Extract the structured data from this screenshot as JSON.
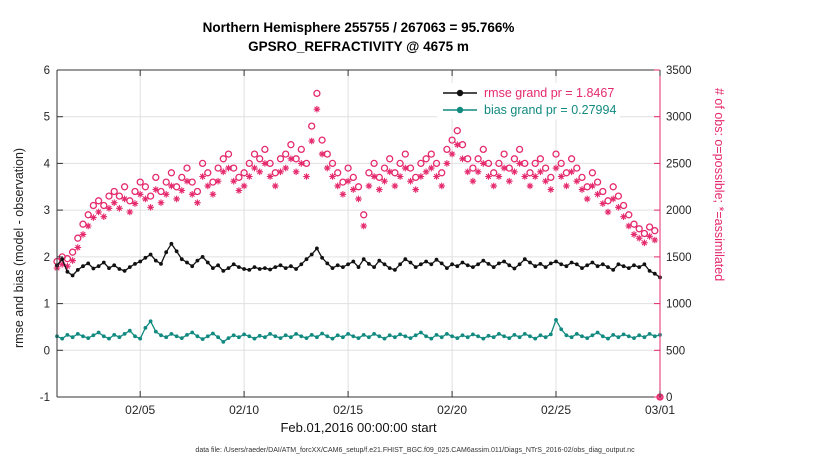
{
  "page": {
    "title_line1": "Northern Hemisphere 255755 / 267063 = 95.766%",
    "title_line2": "GPSRO_REFRACTIVITY @ 4675 m",
    "footer": "data file: /Users/raeder/DAI/ATM_forcXX/CAM6_setup/f.e21.FHIST_BGC.f09_025.CAM6assim.011/Diags_NTrS_2016-02/obs_diag_output.nc"
  },
  "chart_data": {
    "type": "line",
    "title": "Northern Hemisphere 255755 / 267063 = 95.766%",
    "subtitle": "GPSRO_REFRACTIVITY @ 4675 m",
    "colors": {
      "obs_pink": "#e5296d",
      "bias_teal": "#128a80",
      "rmse_black": "#111111",
      "grid": "#e0e0e0",
      "axis": "#333333"
    },
    "x_axis": {
      "label": "Feb.01,2016 00:00:00 start",
      "start_day": 1,
      "end_day": 30,
      "step_days": 0.25,
      "ticks": [
        {
          "day": 5,
          "label": "02/05"
        },
        {
          "day": 10,
          "label": "02/10"
        },
        {
          "day": 15,
          "label": "02/15"
        },
        {
          "day": 20,
          "label": "02/20"
        },
        {
          "day": 25,
          "label": "02/25"
        },
        {
          "day": 30,
          "label": "03/01"
        }
      ]
    },
    "y_left": {
      "label": "rmse and bias (model - observation)",
      "min": -1,
      "max": 6,
      "ticks": [
        -1,
        0,
        1,
        2,
        3,
        4,
        5,
        6
      ]
    },
    "y_right": {
      "label": "# of obs: o=possible; *=assimilated",
      "min": 0,
      "max": 3500,
      "ticks": [
        0,
        500,
        1000,
        1500,
        2000,
        2500,
        3000,
        3500
      ]
    },
    "legend": [
      {
        "label": "rmse grand pr = 1.8467",
        "line_color": "#111111",
        "text_color": "#e5296d"
      },
      {
        "label": "bias grand pr = 0.27994",
        "line_color": "#128a80",
        "text_color": "#128a80"
      }
    ],
    "series": {
      "rmse": {
        "name": "rmse",
        "axis": "left",
        "marker": "dot",
        "values": [
          1.82,
          1.95,
          1.68,
          1.6,
          1.72,
          1.8,
          1.86,
          1.75,
          1.8,
          1.88,
          1.76,
          1.82,
          1.74,
          1.7,
          1.78,
          1.85,
          1.9,
          1.98,
          2.05,
          1.92,
          1.85,
          2.1,
          2.28,
          2.12,
          1.95,
          1.88,
          1.8,
          1.92,
          2.0,
          1.88,
          1.76,
          1.82,
          1.7,
          1.76,
          1.84,
          1.78,
          1.74,
          1.72,
          1.78,
          1.74,
          1.76,
          1.73,
          1.78,
          1.82,
          1.76,
          1.8,
          1.74,
          1.84,
          1.95,
          2.05,
          2.18,
          1.98,
          1.86,
          1.76,
          1.82,
          1.78,
          1.84,
          1.9,
          1.78,
          1.95,
          1.85,
          1.78,
          1.92,
          1.84,
          1.76,
          1.72,
          1.84,
          1.95,
          1.88,
          1.78,
          1.84,
          1.9,
          1.84,
          1.94,
          1.86,
          1.76,
          1.84,
          1.8,
          1.88,
          1.82,
          1.78,
          1.84,
          1.92,
          1.85,
          1.78,
          1.86,
          1.9,
          1.82,
          1.75,
          1.84,
          1.95,
          1.88,
          1.8,
          1.85,
          1.78,
          1.86,
          1.9,
          1.84,
          1.8,
          1.88,
          1.84,
          1.76,
          1.82,
          1.88,
          1.8,
          1.84,
          1.78,
          1.72,
          1.84,
          1.8,
          1.76,
          1.82,
          1.78,
          1.84,
          1.7,
          1.64,
          1.56
        ]
      },
      "bias": {
        "name": "bias",
        "axis": "left",
        "marker": "dot",
        "values": [
          0.3,
          0.25,
          0.33,
          0.28,
          0.35,
          0.3,
          0.26,
          0.32,
          0.38,
          0.3,
          0.25,
          0.33,
          0.28,
          0.35,
          0.42,
          0.3,
          0.25,
          0.48,
          0.62,
          0.4,
          0.32,
          0.28,
          0.35,
          0.3,
          0.26,
          0.33,
          0.38,
          0.3,
          0.24,
          0.3,
          0.36,
          0.28,
          0.18,
          0.26,
          0.32,
          0.28,
          0.34,
          0.3,
          0.25,
          0.31,
          0.28,
          0.35,
          0.3,
          0.26,
          0.32,
          0.28,
          0.35,
          0.3,
          0.26,
          0.33,
          0.28,
          0.36,
          0.3,
          0.25,
          0.32,
          0.28,
          0.35,
          0.3,
          0.26,
          0.33,
          0.28,
          0.35,
          0.3,
          0.25,
          0.32,
          0.28,
          0.34,
          0.3,
          0.26,
          0.32,
          0.38,
          0.3,
          0.25,
          0.33,
          0.28,
          0.35,
          0.3,
          0.26,
          0.32,
          0.28,
          0.34,
          0.3,
          0.25,
          0.31,
          0.28,
          0.35,
          0.3,
          0.26,
          0.33,
          0.28,
          0.35,
          0.3,
          0.25,
          0.32,
          0.28,
          0.34,
          0.65,
          0.45,
          0.32,
          0.28,
          0.35,
          0.3,
          0.26,
          0.32,
          0.38,
          0.3,
          0.25,
          0.33,
          0.28,
          0.34,
          0.3,
          0.26,
          0.32,
          0.28,
          0.35,
          0.3,
          0.33
        ]
      },
      "possible": {
        "name": "# possible",
        "axis": "right",
        "marker": "circle",
        "values": [
          1450,
          1500,
          1480,
          1550,
          1700,
          1850,
          1950,
          2050,
          2100,
          2050,
          2150,
          2200,
          2150,
          2250,
          2100,
          2200,
          2300,
          2250,
          2150,
          2350,
          2200,
          2300,
          2400,
          2250,
          2350,
          2450,
          2300,
          2200,
          2500,
          2400,
          2300,
          2450,
          2550,
          2600,
          2450,
          2350,
          2400,
          2500,
          2600,
          2550,
          2650,
          2500,
          2400,
          2550,
          2600,
          2700,
          2550,
          2650,
          2500,
          2900,
          3250,
          2750,
          2600,
          2500,
          2400,
          2300,
          2450,
          2350,
          2250,
          1950,
          2400,
          2500,
          2350,
          2450,
          2550,
          2400,
          2500,
          2600,
          2450,
          2350,
          2500,
          2550,
          2600,
          2500,
          2400,
          2650,
          2750,
          2850,
          2700,
          2550,
          2450,
          2550,
          2650,
          2500,
          2400,
          2500,
          2600,
          2450,
          2550,
          2650,
          2500,
          2400,
          2500,
          2550,
          2450,
          2350,
          2600,
          2500,
          2400,
          2550,
          2450,
          2350,
          2250,
          2400,
          2300,
          2200,
          2100,
          2250,
          2150,
          2050,
          1950,
          1850,
          1800,
          1750,
          1820,
          1780,
          0
        ]
      },
      "assimilated": {
        "name": "# assimilated",
        "axis": "right",
        "marker": "asterisk",
        "values": [
          1380,
          1420,
          1400,
          1460,
          1600,
          1740,
          1830,
          1920,
          1980,
          1930,
          2020,
          2080,
          2020,
          2120,
          1980,
          2070,
          2170,
          2120,
          2030,
          2220,
          2080,
          2170,
          2260,
          2120,
          2210,
          2310,
          2170,
          2080,
          2360,
          2260,
          2170,
          2310,
          2410,
          2450,
          2310,
          2210,
          2260,
          2360,
          2450,
          2410,
          2500,
          2360,
          2260,
          2410,
          2450,
          2550,
          2410,
          2500,
          2360,
          2740,
          3080,
          2600,
          2450,
          2360,
          2260,
          2170,
          2310,
          2220,
          2120,
          1830,
          2260,
          2360,
          2220,
          2310,
          2410,
          2260,
          2360,
          2450,
          2310,
          2220,
          2360,
          2410,
          2450,
          2360,
          2260,
          2500,
          2600,
          2700,
          2550,
          2410,
          2310,
          2410,
          2500,
          2360,
          2260,
          2360,
          2450,
          2310,
          2410,
          2500,
          2360,
          2260,
          2360,
          2410,
          2310,
          2220,
          2450,
          2360,
          2260,
          2410,
          2310,
          2220,
          2120,
          2260,
          2170,
          2070,
          1980,
          2120,
          2030,
          1930,
          1830,
          1740,
          1700,
          1650,
          1720,
          1680,
          0
        ]
      }
    },
    "grid": true,
    "legend_position": "top-right-inside"
  }
}
